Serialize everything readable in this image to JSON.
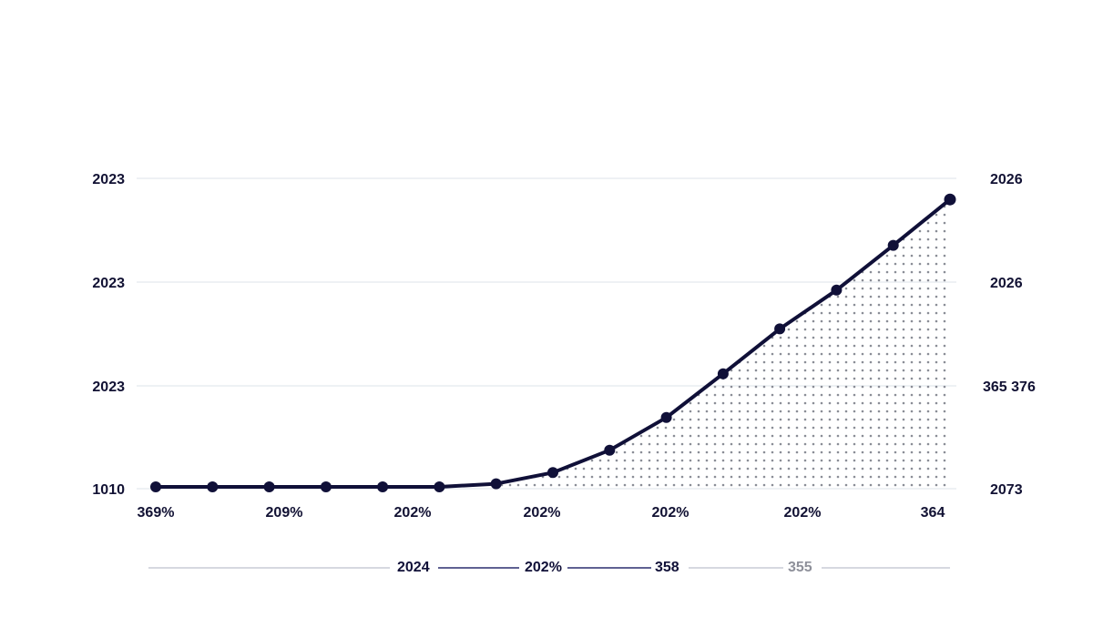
{
  "chart_data": {
    "type": "area",
    "left_axis_labels": [
      "2023",
      "2023",
      "2023",
      "1010"
    ],
    "right_axis_labels": [
      "2026",
      "2026",
      "365 376",
      "2073"
    ],
    "x_tick_labels": [
      "369%",
      "209%",
      "202%",
      "202%",
      "202%",
      "202%",
      "364"
    ],
    "y_range": [
      0,
      300
    ],
    "grid": true,
    "series": [
      {
        "values": [
          0,
          0,
          0,
          0,
          0,
          0,
          3,
          14,
          36,
          68,
          111,
          155,
          193,
          237,
          282
        ]
      }
    ],
    "shaded_from_index": 6,
    "legend": {
      "position": "bottom",
      "items": [
        {
          "label": "2024",
          "active": true
        },
        {
          "label": "202%",
          "active": true
        },
        {
          "label": "358",
          "active": true
        },
        {
          "label": "355",
          "active": false
        }
      ]
    },
    "colors": {
      "line": "#101038",
      "grid": "#dde3ea",
      "dots": "#8a8d96",
      "legend_active": "#2a2d6e",
      "legend_inactive": "#c9ccd6",
      "legend_inactive_text": "#8e909a"
    }
  }
}
